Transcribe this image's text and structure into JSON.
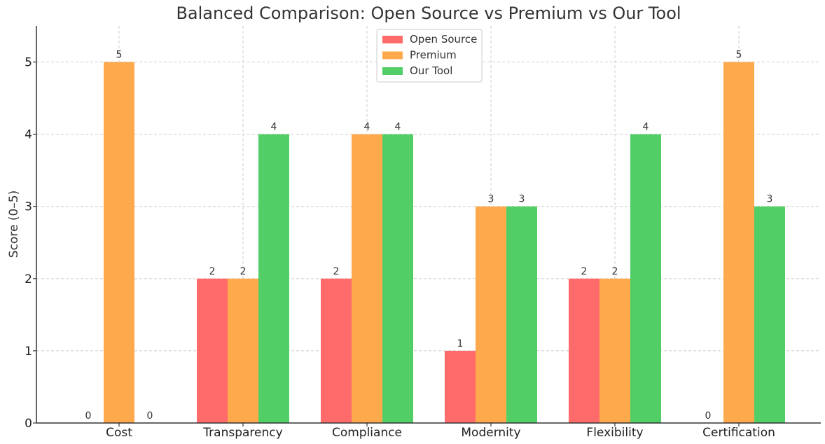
{
  "chart_data": {
    "type": "bar",
    "title": "Balanced Comparison: Open Source vs Premium vs Our Tool",
    "xlabel": "",
    "ylabel": "Score (0–5)",
    "ylim": [
      0,
      5.5
    ],
    "yticks": [
      "0",
      "1",
      "2",
      "3",
      "4",
      "5"
    ],
    "grid": true,
    "legend_position": "top-center",
    "categories": [
      "Cost",
      "Transparency",
      "Compliance",
      "Modernity",
      "Flexibility",
      "Certification"
    ],
    "series": [
      {
        "name": "Open Source",
        "color": "#ff6b6b",
        "values": [
          0,
          2,
          2,
          1,
          2,
          0
        ]
      },
      {
        "name": "Premium",
        "color": "#ffa94d",
        "values": [
          5,
          2,
          4,
          3,
          2,
          5
        ]
      },
      {
        "name": "Our Tool",
        "color": "#51cf66",
        "values": [
          0,
          4,
          4,
          3,
          4,
          3
        ]
      }
    ]
  }
}
